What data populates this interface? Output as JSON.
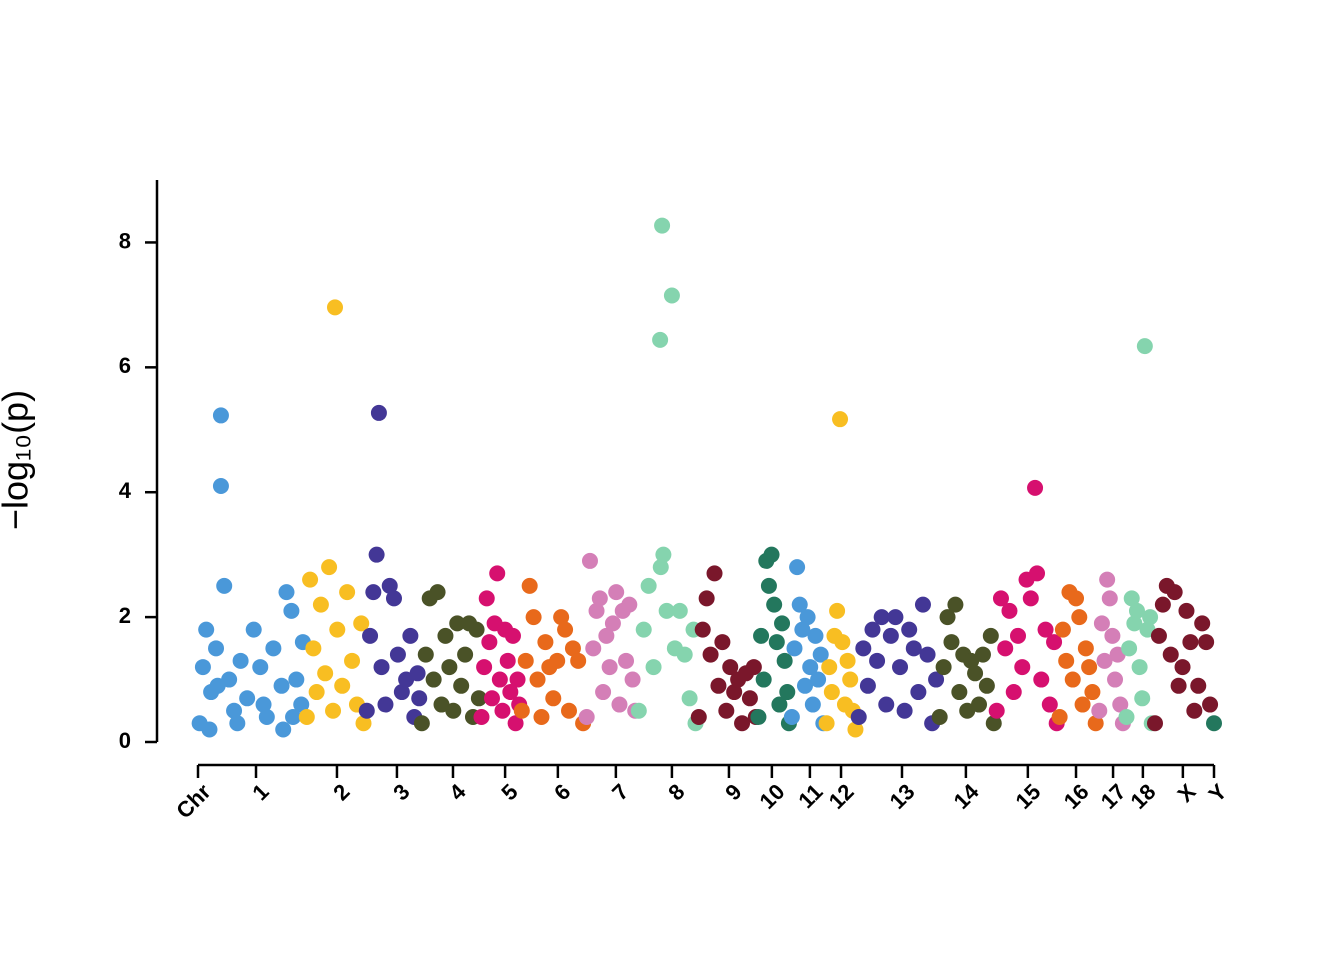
{
  "chart_data": {
    "type": "scatter",
    "y_label": "−log₁₀(p)",
    "xlim": [
      0,
      3100
    ],
    "ylim": [
      0,
      9
    ],
    "yticks": [
      0,
      2,
      4,
      6,
      8
    ],
    "xticks": [
      {
        "value": 0,
        "label": "Chr"
      },
      {
        "value": 177,
        "label": "1"
      },
      {
        "value": 424,
        "label": "2"
      },
      {
        "value": 607,
        "label": "3"
      },
      {
        "value": 778,
        "label": "4"
      },
      {
        "value": 937,
        "label": "5"
      },
      {
        "value": 1098,
        "label": "6"
      },
      {
        "value": 1275,
        "label": "7"
      },
      {
        "value": 1446,
        "label": "8"
      },
      {
        "value": 1620,
        "label": "9"
      },
      {
        "value": 1751,
        "label": "10"
      },
      {
        "value": 1867,
        "label": "11"
      },
      {
        "value": 1962,
        "label": "12"
      },
      {
        "value": 2148,
        "label": "13"
      },
      {
        "value": 2343,
        "label": "14"
      },
      {
        "value": 2532,
        "label": "15"
      },
      {
        "value": 2679,
        "label": "16"
      },
      {
        "value": 2792,
        "label": "17"
      },
      {
        "value": 2883,
        "label": "18"
      },
      {
        "value": 3005,
        "label": "X"
      },
      {
        "value": 3100,
        "label": "Y"
      }
    ],
    "series": [
      {
        "color": "#4a98d9",
        "x": [
          5,
          15,
          25,
          40,
          55,
          70,
          70,
          80,
          95,
          110,
          130,
          150,
          170,
          190,
          210,
          230,
          255,
          270,
          285,
          300,
          315,
          320,
          35,
          60,
          120,
          200,
          260,
          290
        ],
        "values": [
          0.3,
          1.2,
          1.8,
          0.8,
          1.5,
          5.23,
          4.1,
          2.5,
          1.0,
          0.5,
          1.3,
          0.7,
          1.8,
          1.2,
          0.4,
          1.5,
          0.9,
          2.4,
          2.1,
          1.0,
          0.6,
          1.6,
          0.2,
          0.9,
          0.3,
          0.6,
          0.2,
          0.4
        ]
      },
      {
        "color": "#f8be22",
        "x": [
          332,
          342,
          352,
          362,
          375,
          388,
          400,
          412,
          418,
          425,
          440,
          455,
          470,
          485,
          498,
          505
        ],
        "values": [
          0.4,
          2.6,
          1.5,
          0.8,
          2.2,
          1.1,
          2.8,
          0.5,
          6.96,
          1.8,
          0.9,
          2.4,
          1.3,
          0.6,
          1.9,
          0.3
        ]
      },
      {
        "color": "#433796",
        "x": [
          515,
          525,
          535,
          545,
          552,
          560,
          572,
          585,
          598,
          610,
          622,
          635,
          648,
          660,
          670,
          675
        ],
        "values": [
          0.5,
          1.7,
          2.4,
          3.0,
          5.27,
          1.2,
          0.6,
          2.5,
          2.3,
          1.4,
          0.8,
          1.0,
          1.7,
          0.4,
          1.1,
          0.7
        ]
      },
      {
        "color": "#4a5227",
        "x": [
          683,
          695,
          707,
          719,
          731,
          743,
          755,
          767,
          779,
          791,
          803,
          815,
          827,
          839,
          850,
          857
        ],
        "values": [
          0.3,
          1.4,
          2.3,
          1.0,
          2.4,
          0.6,
          1.7,
          1.2,
          0.5,
          1.9,
          0.9,
          1.4,
          1.9,
          0.4,
          1.8,
          0.7
        ]
      },
      {
        "color": "#d6106f",
        "x": [
          865,
          873,
          881,
          889,
          897,
          905,
          913,
          921,
          929,
          937,
          945,
          953,
          961,
          969,
          975,
          980
        ],
        "values": [
          0.4,
          1.2,
          2.3,
          1.6,
          0.7,
          1.9,
          2.7,
          1.0,
          0.5,
          1.8,
          1.3,
          0.8,
          1.7,
          0.3,
          1.0,
          0.6
        ]
      },
      {
        "color": "#e8691b",
        "x": [
          988,
          1000,
          1012,
          1024,
          1036,
          1048,
          1060,
          1072,
          1084,
          1096,
          1108,
          1120,
          1132,
          1144,
          1160,
          1175
        ],
        "values": [
          0.5,
          1.3,
          2.5,
          2.0,
          1.0,
          0.4,
          1.6,
          1.2,
          0.7,
          1.3,
          2.0,
          1.8,
          0.5,
          1.5,
          1.3,
          0.3
        ]
      },
      {
        "color": "#d47fb7",
        "x": [
          1186,
          1196,
          1206,
          1216,
          1226,
          1236,
          1246,
          1256,
          1266,
          1276,
          1286,
          1296,
          1306,
          1316,
          1326,
          1334
        ],
        "values": [
          0.4,
          2.9,
          1.5,
          2.1,
          2.3,
          0.8,
          1.7,
          1.2,
          1.9,
          2.4,
          0.6,
          2.1,
          1.3,
          2.2,
          1.0,
          0.5
        ]
      },
      {
        "color": "#85d4ae",
        "x": [
          1345,
          1360,
          1375,
          1390,
          1410,
          1412,
          1416,
          1420,
          1430,
          1446,
          1455,
          1470,
          1485,
          1500,
          1512,
          1518
        ],
        "values": [
          0.5,
          1.8,
          2.5,
          1.2,
          6.44,
          2.8,
          8.27,
          3.0,
          2.1,
          7.15,
          1.5,
          2.1,
          1.4,
          0.7,
          1.8,
          0.3
        ]
      },
      {
        "color": "#7a172b",
        "x": [
          1528,
          1540,
          1552,
          1564,
          1576,
          1588,
          1600,
          1612,
          1624,
          1636,
          1648,
          1660,
          1672,
          1684,
          1696,
          1702
        ],
        "values": [
          0.4,
          1.8,
          2.3,
          1.4,
          2.7,
          0.9,
          1.6,
          0.5,
          1.2,
          0.8,
          1.0,
          0.3,
          1.1,
          0.7,
          1.2,
          0.4
        ]
      },
      {
        "color": "#23775d",
        "x": [
          1710,
          1718,
          1726,
          1734,
          1742,
          1750,
          1758,
          1766,
          1774,
          1782,
          1790,
          1798,
          1803
        ],
        "values": [
          0.4,
          1.7,
          1.0,
          2.9,
          2.5,
          3.0,
          2.2,
          1.6,
          0.6,
          1.9,
          1.3,
          0.8,
          0.3
        ]
      },
      {
        "color": "#4a98d9",
        "x": [
          1812,
          1820,
          1828,
          1836,
          1844,
          1852,
          1860,
          1868,
          1876,
          1884,
          1892,
          1900,
          1908
        ],
        "values": [
          0.4,
          1.5,
          2.8,
          2.2,
          1.8,
          0.9,
          2.0,
          1.2,
          0.6,
          1.7,
          1.0,
          1.4,
          0.3
        ]
      },
      {
        "color": "#f8be22",
        "x": [
          1918,
          1926,
          1934,
          1942,
          1950,
          1959,
          1966,
          1974,
          1982,
          1990,
          1998,
          2006
        ],
        "values": [
          0.3,
          1.2,
          0.8,
          1.7,
          2.1,
          5.17,
          1.6,
          0.6,
          1.3,
          1.0,
          0.5,
          0.2
        ]
      },
      {
        "color": "#433796",
        "x": [
          2016,
          2030,
          2044,
          2058,
          2072,
          2086,
          2100,
          2114,
          2128,
          2142,
          2156,
          2170,
          2184,
          2198,
          2212,
          2226,
          2240,
          2252
        ],
        "values": [
          0.4,
          1.5,
          0.9,
          1.8,
          1.3,
          2.0,
          0.6,
          1.7,
          2.0,
          1.2,
          0.5,
          1.8,
          1.5,
          0.8,
          2.2,
          1.4,
          0.3,
          1.0
        ]
      },
      {
        "color": "#4a5227",
        "x": [
          2263,
          2275,
          2287,
          2299,
          2311,
          2323,
          2335,
          2347,
          2359,
          2371,
          2383,
          2395,
          2407,
          2419,
          2428
        ],
        "values": [
          0.4,
          1.2,
          2.0,
          1.6,
          2.2,
          0.8,
          1.4,
          0.5,
          1.3,
          1.1,
          0.6,
          1.4,
          0.9,
          1.7,
          0.3
        ]
      },
      {
        "color": "#d6106f",
        "x": [
          2437,
          2450,
          2463,
          2476,
          2489,
          2502,
          2515,
          2528,
          2541,
          2554,
          2560,
          2573,
          2586,
          2599,
          2612,
          2620
        ],
        "values": [
          0.5,
          2.3,
          1.5,
          2.1,
          0.8,
          1.7,
          1.2,
          2.6,
          2.3,
          4.07,
          2.7,
          1.0,
          1.8,
          0.6,
          1.6,
          0.3
        ]
      },
      {
        "color": "#e8691b",
        "x": [
          2629,
          2639,
          2649,
          2659,
          2669,
          2679,
          2689,
          2699,
          2709,
          2719,
          2729,
          2739
        ],
        "values": [
          0.4,
          1.8,
          1.3,
          2.4,
          1.0,
          2.3,
          2.0,
          0.6,
          1.5,
          1.2,
          0.8,
          0.3
        ]
      },
      {
        "color": "#d47fb7",
        "x": [
          2750,
          2758,
          2766,
          2774,
          2782,
          2790,
          2798,
          2806,
          2814,
          2822
        ],
        "values": [
          0.5,
          1.9,
          1.3,
          2.6,
          2.3,
          1.7,
          1.0,
          1.4,
          0.6,
          0.3
        ]
      },
      {
        "color": "#85d4ae",
        "x": [
          2833,
          2841,
          2849,
          2857,
          2865,
          2873,
          2881,
          2889,
          2897,
          2905,
          2910
        ],
        "values": [
          0.4,
          1.5,
          2.3,
          1.9,
          2.1,
          1.2,
          0.7,
          6.34,
          1.8,
          2.0,
          0.3
        ]
      },
      {
        "color": "#7a172b",
        "x": [
          2920,
          2932,
          2944,
          2956,
          2968,
          2980,
          2992,
          3004,
          3016,
          3028,
          3040,
          3052,
          3064,
          3076,
          3088
        ],
        "values": [
          0.3,
          1.7,
          2.2,
          2.5,
          1.4,
          2.4,
          0.9,
          1.2,
          2.1,
          1.6,
          0.5,
          0.9,
          1.9,
          1.6,
          0.6
        ]
      },
      {
        "color": "#23775d",
        "x": [
          3100
        ],
        "values": [
          0.3
        ]
      }
    ]
  }
}
